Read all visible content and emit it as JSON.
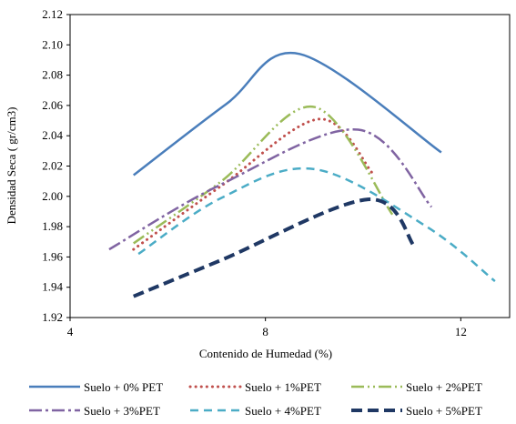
{
  "chart_data": {
    "type": "line",
    "xlabel": "Contenido de Humedad (%)",
    "ylabel": "Densidad Seca ( gr/cm3)",
    "xlim": [
      4,
      13
    ],
    "xticks": [
      4,
      8,
      12
    ],
    "ylim": [
      1.92,
      2.12
    ],
    "yticks": [
      1.92,
      1.94,
      1.96,
      1.98,
      {
        "value": 2.0,
        "label": "2.00"
      },
      2.02,
      2.04,
      2.06,
      2.08,
      {
        "value": 2.1,
        "label": "2.10"
      },
      2.12
    ],
    "series": [
      {
        "name": "Suelo + 0% PET",
        "color": "#4a7ebb",
        "dash": "solid",
        "x": [
          5.3,
          7.2,
          8.7,
          11.6
        ],
        "values": [
          2.014,
          2.061,
          2.094,
          2.029
        ]
      },
      {
        "name": "Suelo + 1%PET",
        "color": "#c0504d",
        "dash": "dotted",
        "x": [
          5.3,
          7.1,
          9.1,
          10.2
        ],
        "values": [
          1.965,
          2.007,
          2.051,
          2.015
        ]
      },
      {
        "name": "Suelo + 2%PET",
        "color": "#9bbb59",
        "dash": "dashdotdot",
        "x": [
          5.3,
          7.1,
          9.0,
          10.6
        ],
        "values": [
          1.969,
          2.01,
          2.059,
          1.988
        ]
      },
      {
        "name": "Suelo + 3%PET",
        "color": "#8064a2",
        "dash": "dashdot",
        "x": [
          4.8,
          7.1,
          9.9,
          11.4
        ],
        "values": [
          1.965,
          2.008,
          2.044,
          1.993
        ]
      },
      {
        "name": "Suelo + 4%PET",
        "color": "#4bacc6",
        "dash": "dashed",
        "x": [
          5.4,
          7.1,
          9.0,
          11.3,
          12.7
        ],
        "values": [
          1.962,
          1.999,
          2.018,
          1.98,
          1.944
        ]
      },
      {
        "name": "Suelo + 5%PET",
        "color": "#1f3864",
        "dash": "longdash",
        "x": [
          5.3,
          7.1,
          10.1,
          11.05
        ],
        "values": [
          1.934,
          1.958,
          1.998,
          1.967
        ]
      }
    ]
  }
}
